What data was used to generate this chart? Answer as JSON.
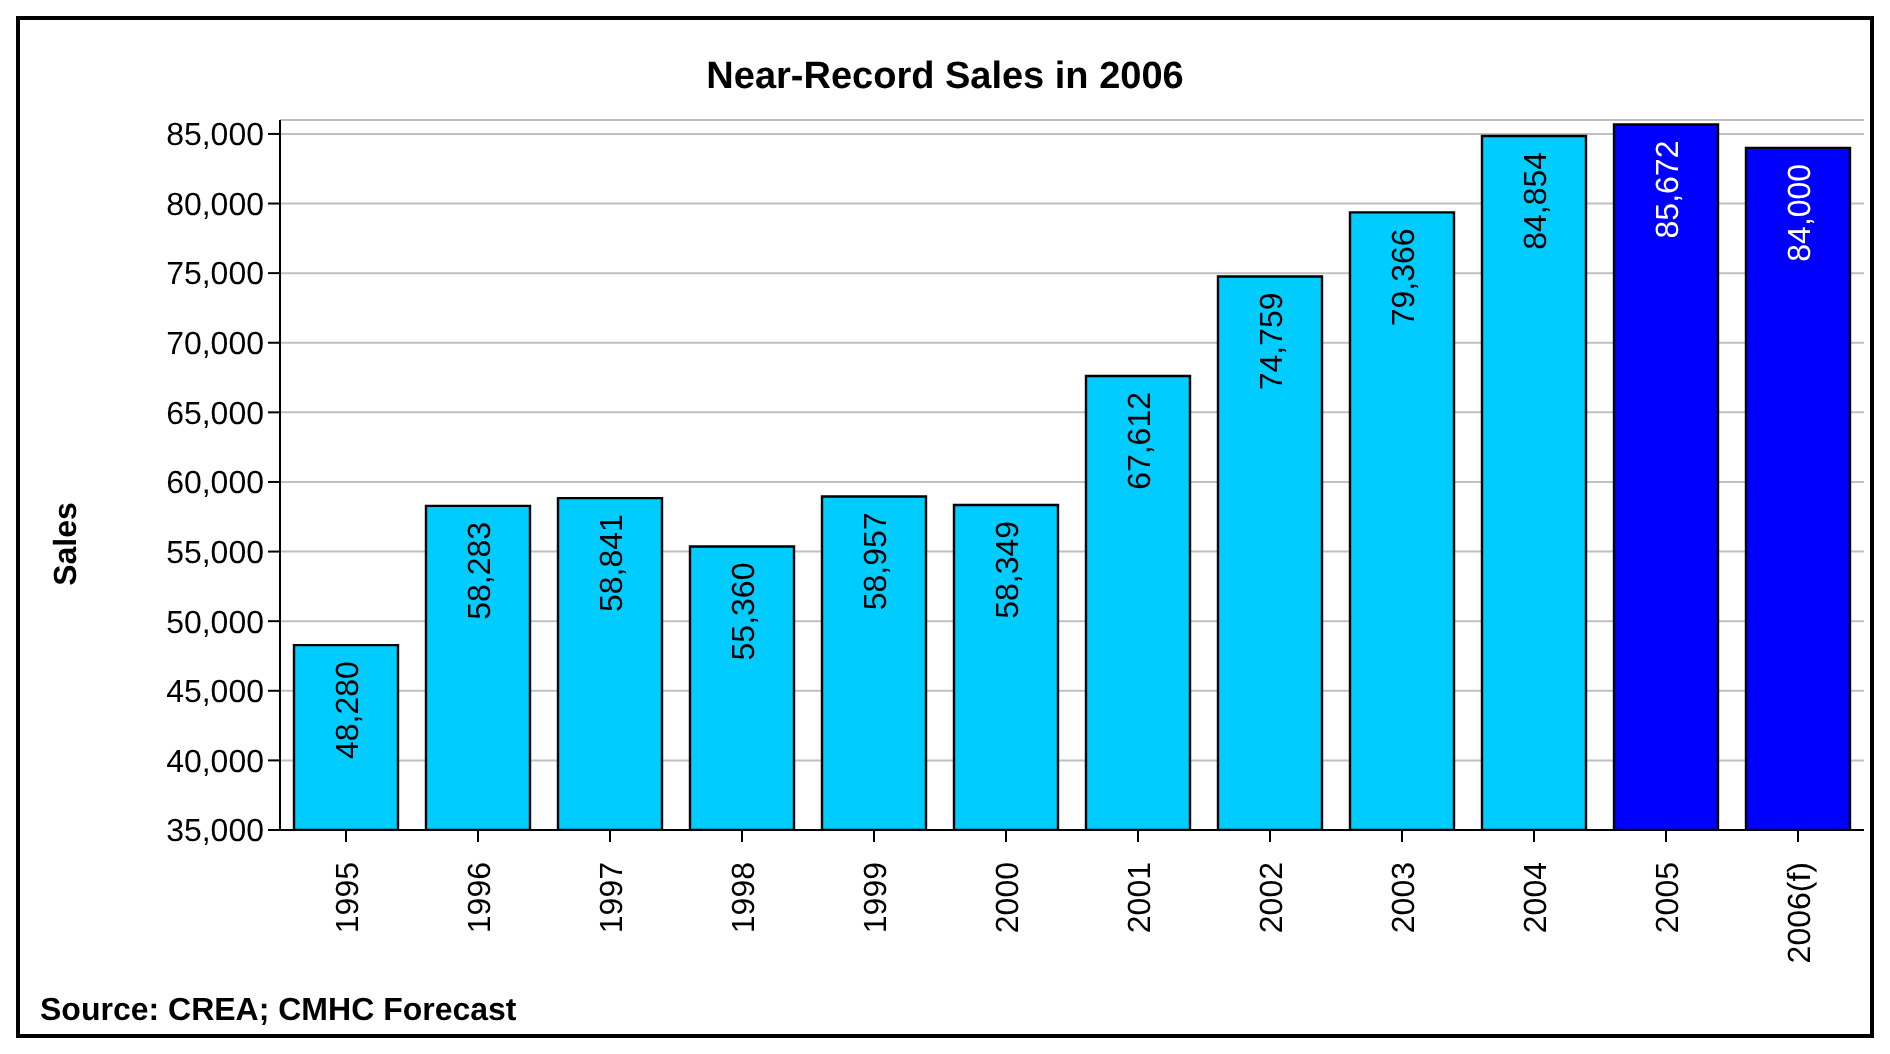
{
  "chart_data": {
    "type": "bar",
    "title": "Near-Record Sales in 2006",
    "ylabel": "Sales",
    "categories": [
      "1995",
      "1996",
      "1997",
      "1998",
      "1999",
      "2000",
      "2001",
      "2002",
      "2003",
      "2004",
      "2005",
      "2006(f)"
    ],
    "values": [
      48280,
      58283,
      58841,
      55360,
      58957,
      58349,
      67612,
      74759,
      79366,
      84854,
      85672,
      84000
    ],
    "value_labels": [
      "48,280",
      "58,283",
      "58,841",
      "55,360",
      "58,957",
      "58,349",
      "67,612",
      "74,759",
      "79,366",
      "84,854",
      "85,672",
      "84,000"
    ],
    "colors": [
      "#00ccff",
      "#00ccff",
      "#00ccff",
      "#00ccff",
      "#00ccff",
      "#00ccff",
      "#00ccff",
      "#00ccff",
      "#00ccff",
      "#00ccff",
      "#0000ff",
      "#0000ff"
    ],
    "ylim": [
      35000,
      86000
    ],
    "yticks": [
      {
        "value": 35000,
        "label": "35,000"
      },
      {
        "value": 40000,
        "label": "40,000"
      },
      {
        "value": 45000,
        "label": "45,000"
      },
      {
        "value": 50000,
        "label": "50,000"
      },
      {
        "value": 55000,
        "label": "55,000"
      },
      {
        "value": 60000,
        "label": "60,000"
      },
      {
        "value": 65000,
        "label": "65,000"
      },
      {
        "value": 70000,
        "label": "70,000"
      },
      {
        "value": 75000,
        "label": "75,000"
      },
      {
        "value": 80000,
        "label": "80,000"
      },
      {
        "value": 85000,
        "label": "85,000"
      }
    ],
    "grid": "y",
    "legend": false,
    "annotations": [
      "Source: CREA; CMHC Forecast"
    ]
  }
}
